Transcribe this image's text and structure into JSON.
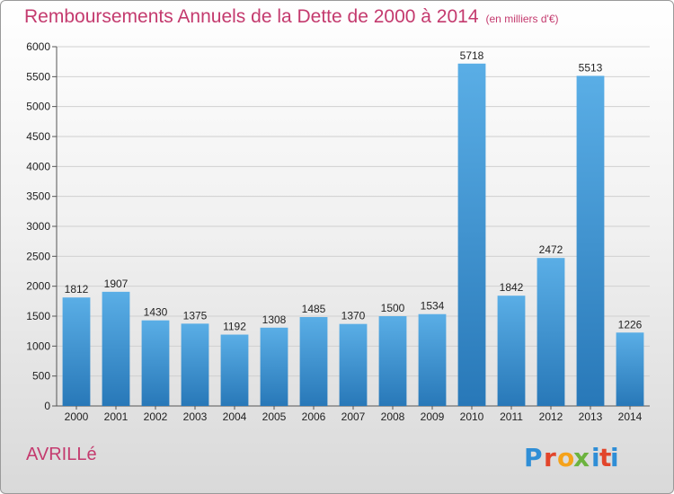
{
  "header": {
    "title": "Remboursements Annuels de la Dette de 2000 à 2014",
    "unit": "(en milliers d'€)"
  },
  "footer": {
    "city": "AVRILLé",
    "logo_text": "Proxiti",
    "logo_colors": [
      "#2f8ed6",
      "#e2452b",
      "#f5a21a",
      "#6cb33e",
      "#2f8ed6",
      "#e2452b",
      "#2f8ed6"
    ]
  },
  "colors": {
    "bar_light": "#5aaee6",
    "bar_dark": "#2878b8",
    "title": "#c43a6e",
    "grid": "#d0d0d0"
  },
  "chart_data": {
    "type": "bar",
    "title": "Remboursements Annuels de la Dette de 2000 à 2014",
    "subtitle": "(en milliers d'€)",
    "categories": [
      "2000",
      "2001",
      "2002",
      "2003",
      "2004",
      "2005",
      "2006",
      "2007",
      "2008",
      "2009",
      "2010",
      "2011",
      "2012",
      "2013",
      "2014"
    ],
    "values": [
      1812,
      1907,
      1430,
      1375,
      1192,
      1308,
      1485,
      1370,
      1500,
      1534,
      5718,
      1842,
      2472,
      5513,
      1226
    ],
    "ylim": [
      0,
      6000
    ],
    "yticks": [
      0,
      500,
      1000,
      1500,
      2000,
      2500,
      3000,
      3500,
      4000,
      4500,
      5000,
      5500,
      6000
    ],
    "xlabel": "",
    "ylabel": "",
    "grid": true,
    "data_labels": true
  }
}
